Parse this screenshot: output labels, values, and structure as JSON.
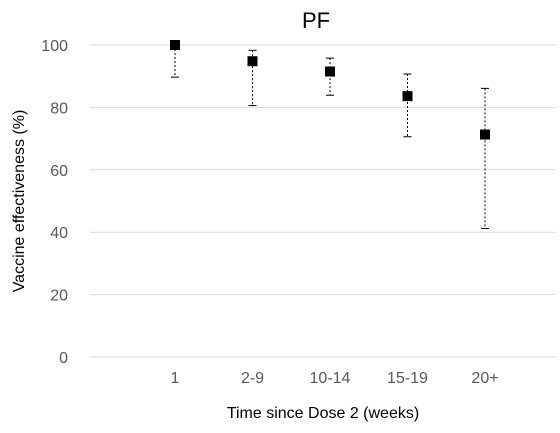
{
  "chart_data": {
    "type": "scatter",
    "title": "PF",
    "xlabel": "Time since Dose 2 (weeks)",
    "ylabel": "Vaccine effectiveness (%)",
    "ylim": [
      0,
      100
    ],
    "yticks": [
      0,
      20,
      40,
      60,
      80,
      100
    ],
    "categories": [
      "1",
      "2-9",
      "10-14",
      "15-19",
      "20+"
    ],
    "series": [
      {
        "values": [
          100,
          94.8,
          91.5,
          83.6,
          71.3
        ],
        "error_low": [
          89.7,
          80.6,
          83.9,
          70.6,
          41.2
        ],
        "error_high": [
          100,
          98.3,
          95.8,
          90.7,
          86.1
        ]
      }
    ],
    "grid": true,
    "legend": "none",
    "colors": {
      "marker": "#000000",
      "grid": "#d9d9d9"
    }
  }
}
